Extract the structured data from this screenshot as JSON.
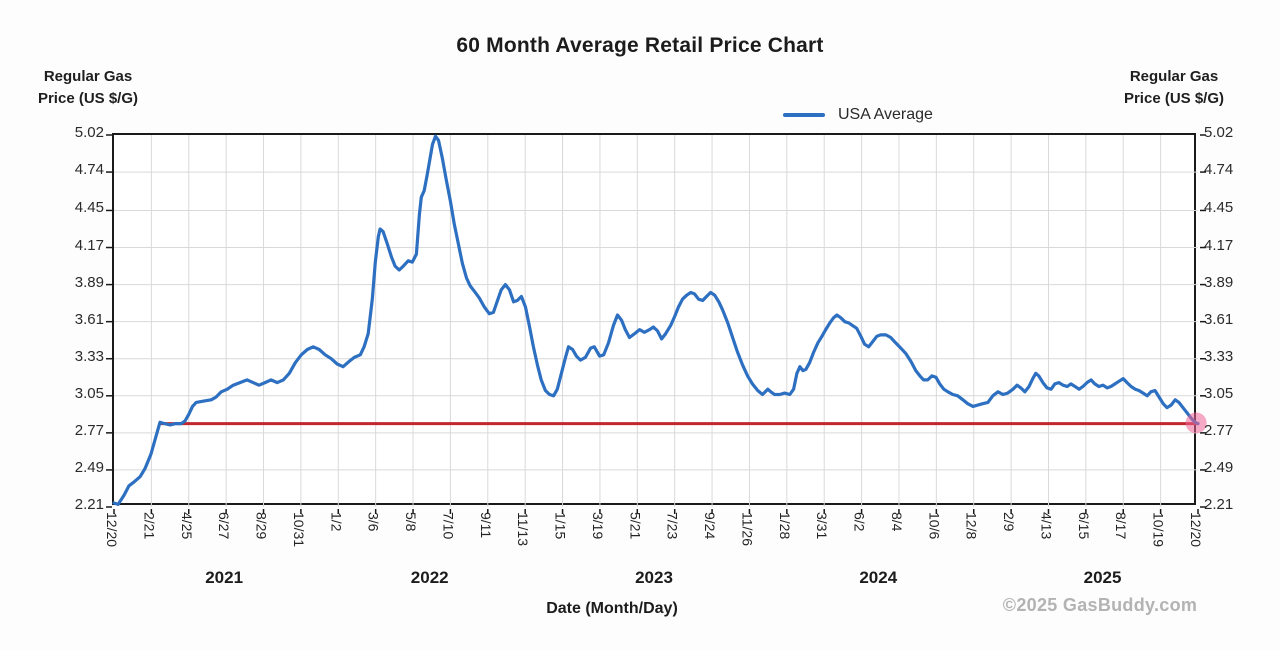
{
  "title": "60 Month Average Retail Price Chart",
  "axis_left_title": {
    "line1": "Regular Gas",
    "line2": "Price (US $/G)"
  },
  "axis_right_title": {
    "line1": "Regular Gas",
    "line2": "Price (US $/G)"
  },
  "legend": {
    "label": "USA Average",
    "swatch_color": "#2d6fc1"
  },
  "x_axis_title": "Date (Month/Day)",
  "watermark": "©2025 GasBuddy.com",
  "colors": {
    "series_blue": "#2d6fc1",
    "reference_red": "#c1272d",
    "end_marker_pink": "#ee6496",
    "end_marker_opacity": 0.55,
    "grid": "#d9d9d9",
    "plot_border": "#1a1a1a",
    "tick_text": "#242424",
    "watermark_gray": "#b3b3b3"
  },
  "chart_data": {
    "type": "line",
    "title": "60 Month Average Retail Price Chart",
    "xlabel": "Date (Month/Day)",
    "ylabel": "Regular Gas Price (US $/G)",
    "grid": true,
    "legend_position": "top-right",
    "ylim": [
      2.21,
      5.02
    ],
    "x_units": [
      0,
      29
    ],
    "y_ticks": [
      "5.02",
      "4.74",
      "4.45",
      "4.17",
      "3.89",
      "3.61",
      "3.33",
      "3.05",
      "2.77",
      "2.49",
      "2.21"
    ],
    "x_ticks": [
      "12/20",
      "2/21",
      "4/25",
      "6/27",
      "8/29",
      "10/31",
      "1/2",
      "3/6",
      "5/8",
      "7/10",
      "9/11",
      "11/13",
      "1/15",
      "3/19",
      "5/21",
      "7/23",
      "9/24",
      "11/26",
      "1/28",
      "3/31",
      "6/2",
      "8/4",
      "10/6",
      "12/8",
      "2/9",
      "4/13",
      "6/15",
      "8/17",
      "10/19",
      "12/20"
    ],
    "years": [
      {
        "label": "2021",
        "center_u": 3.0
      },
      {
        "label": "2022",
        "center_u": 8.5
      },
      {
        "label": "2023",
        "center_u": 14.5
      },
      {
        "label": "2024",
        "center_u": 20.5
      },
      {
        "label": "2025",
        "center_u": 26.5
      }
    ],
    "reference_line": {
      "value": 2.84,
      "start_u": 1.25,
      "end_u": 29
    },
    "end_marker": {
      "u": 28.95,
      "value": 2.845
    },
    "series": [
      {
        "name": "USA Average",
        "points": [
          [
            0,
            2.24
          ],
          [
            0.11,
            2.23
          ],
          [
            0.27,
            2.3
          ],
          [
            0.4,
            2.37
          ],
          [
            0.54,
            2.4
          ],
          [
            0.7,
            2.44
          ],
          [
            0.83,
            2.5
          ],
          [
            0.99,
            2.61
          ],
          [
            1.1,
            2.72
          ],
          [
            1.18,
            2.8
          ],
          [
            1.23,
            2.85
          ],
          [
            1.35,
            2.84
          ],
          [
            1.5,
            2.83
          ],
          [
            1.65,
            2.84
          ],
          [
            1.8,
            2.84
          ],
          [
            1.9,
            2.86
          ],
          [
            2.0,
            2.91
          ],
          [
            2.1,
            2.97
          ],
          [
            2.2,
            3.0
          ],
          [
            2.4,
            3.01
          ],
          [
            2.6,
            3.02
          ],
          [
            2.73,
            3.04
          ],
          [
            2.87,
            3.08
          ],
          [
            3.03,
            3.1
          ],
          [
            3.19,
            3.13
          ],
          [
            3.37,
            3.15
          ],
          [
            3.56,
            3.17
          ],
          [
            3.72,
            3.15
          ],
          [
            3.88,
            3.13
          ],
          [
            4.04,
            3.15
          ],
          [
            4.2,
            3.17
          ],
          [
            4.37,
            3.15
          ],
          [
            4.53,
            3.17
          ],
          [
            4.69,
            3.22
          ],
          [
            4.85,
            3.3
          ],
          [
            5.01,
            3.36
          ],
          [
            5.17,
            3.4
          ],
          [
            5.33,
            3.42
          ],
          [
            5.49,
            3.4
          ],
          [
            5.65,
            3.36
          ],
          [
            5.81,
            3.33
          ],
          [
            5.97,
            3.29
          ],
          [
            6.13,
            3.27
          ],
          [
            6.29,
            3.31
          ],
          [
            6.43,
            3.34
          ],
          [
            6.59,
            3.36
          ],
          [
            6.69,
            3.42
          ],
          [
            6.8,
            3.52
          ],
          [
            6.91,
            3.78
          ],
          [
            6.99,
            4.06
          ],
          [
            7.07,
            4.25
          ],
          [
            7.12,
            4.31
          ],
          [
            7.2,
            4.29
          ],
          [
            7.31,
            4.2
          ],
          [
            7.42,
            4.1
          ],
          [
            7.52,
            4.03
          ],
          [
            7.63,
            4.0
          ],
          [
            7.74,
            4.03
          ],
          [
            7.87,
            4.07
          ],
          [
            7.98,
            4.06
          ],
          [
            8.09,
            4.12
          ],
          [
            8.17,
            4.42
          ],
          [
            8.22,
            4.55
          ],
          [
            8.3,
            4.6
          ],
          [
            8.38,
            4.72
          ],
          [
            8.46,
            4.85
          ],
          [
            8.52,
            4.95
          ],
          [
            8.6,
            5.01
          ],
          [
            8.68,
            4.98
          ],
          [
            8.78,
            4.85
          ],
          [
            8.89,
            4.68
          ],
          [
            9.0,
            4.52
          ],
          [
            9.1,
            4.35
          ],
          [
            9.21,
            4.2
          ],
          [
            9.32,
            4.05
          ],
          [
            9.43,
            3.94
          ],
          [
            9.53,
            3.88
          ],
          [
            9.64,
            3.84
          ],
          [
            9.77,
            3.79
          ],
          [
            9.91,
            3.72
          ],
          [
            10.04,
            3.67
          ],
          [
            10.15,
            3.68
          ],
          [
            10.26,
            3.77
          ],
          [
            10.36,
            3.85
          ],
          [
            10.47,
            3.89
          ],
          [
            10.58,
            3.85
          ],
          [
            10.69,
            3.76
          ],
          [
            10.79,
            3.77
          ],
          [
            10.9,
            3.8
          ],
          [
            11.01,
            3.72
          ],
          [
            11.11,
            3.58
          ],
          [
            11.22,
            3.42
          ],
          [
            11.33,
            3.28
          ],
          [
            11.43,
            3.17
          ],
          [
            11.54,
            3.09
          ],
          [
            11.65,
            3.06
          ],
          [
            11.76,
            3.05
          ],
          [
            11.86,
            3.1
          ],
          [
            11.97,
            3.22
          ],
          [
            12.08,
            3.34
          ],
          [
            12.16,
            3.42
          ],
          [
            12.27,
            3.4
          ],
          [
            12.37,
            3.35
          ],
          [
            12.48,
            3.32
          ],
          [
            12.61,
            3.34
          ],
          [
            12.75,
            3.41
          ],
          [
            12.85,
            3.42
          ],
          [
            12.99,
            3.35
          ],
          [
            13.1,
            3.36
          ],
          [
            13.23,
            3.45
          ],
          [
            13.36,
            3.58
          ],
          [
            13.47,
            3.66
          ],
          [
            13.58,
            3.62
          ],
          [
            13.68,
            3.55
          ],
          [
            13.79,
            3.49
          ],
          [
            13.93,
            3.52
          ],
          [
            14.06,
            3.55
          ],
          [
            14.19,
            3.53
          ],
          [
            14.33,
            3.55
          ],
          [
            14.43,
            3.57
          ],
          [
            14.54,
            3.54
          ],
          [
            14.65,
            3.48
          ],
          [
            14.76,
            3.52
          ],
          [
            14.89,
            3.58
          ],
          [
            15.0,
            3.65
          ],
          [
            15.1,
            3.72
          ],
          [
            15.21,
            3.78
          ],
          [
            15.32,
            3.81
          ],
          [
            15.43,
            3.83
          ],
          [
            15.53,
            3.82
          ],
          [
            15.64,
            3.78
          ],
          [
            15.75,
            3.77
          ],
          [
            15.85,
            3.8
          ],
          [
            15.96,
            3.83
          ],
          [
            16.07,
            3.81
          ],
          [
            16.18,
            3.76
          ],
          [
            16.28,
            3.7
          ],
          [
            16.42,
            3.6
          ],
          [
            16.55,
            3.49
          ],
          [
            16.68,
            3.38
          ],
          [
            16.82,
            3.28
          ],
          [
            16.95,
            3.2
          ],
          [
            17.08,
            3.14
          ],
          [
            17.22,
            3.09
          ],
          [
            17.35,
            3.06
          ],
          [
            17.49,
            3.1
          ],
          [
            17.57,
            3.08
          ],
          [
            17.67,
            3.06
          ],
          [
            17.81,
            3.06
          ],
          [
            17.94,
            3.07
          ],
          [
            18.08,
            3.06
          ],
          [
            18.18,
            3.1
          ],
          [
            18.27,
            3.22
          ],
          [
            18.35,
            3.27
          ],
          [
            18.43,
            3.24
          ],
          [
            18.51,
            3.25
          ],
          [
            18.61,
            3.3
          ],
          [
            18.72,
            3.38
          ],
          [
            18.83,
            3.45
          ],
          [
            18.94,
            3.5
          ],
          [
            19.04,
            3.55
          ],
          [
            19.15,
            3.6
          ],
          [
            19.25,
            3.64
          ],
          [
            19.34,
            3.66
          ],
          [
            19.44,
            3.64
          ],
          [
            19.55,
            3.61
          ],
          [
            19.66,
            3.6
          ],
          [
            19.76,
            3.58
          ],
          [
            19.87,
            3.56
          ],
          [
            19.98,
            3.5
          ],
          [
            20.08,
            3.44
          ],
          [
            20.19,
            3.42
          ],
          [
            20.3,
            3.46
          ],
          [
            20.41,
            3.5
          ],
          [
            20.51,
            3.51
          ],
          [
            20.65,
            3.51
          ],
          [
            20.78,
            3.49
          ],
          [
            20.91,
            3.45
          ],
          [
            21.05,
            3.41
          ],
          [
            21.18,
            3.37
          ],
          [
            21.32,
            3.31
          ],
          [
            21.45,
            3.24
          ],
          [
            21.56,
            3.2
          ],
          [
            21.66,
            3.17
          ],
          [
            21.77,
            3.17
          ],
          [
            21.88,
            3.2
          ],
          [
            21.99,
            3.19
          ],
          [
            22.09,
            3.14
          ],
          [
            22.2,
            3.1
          ],
          [
            22.31,
            3.08
          ],
          [
            22.44,
            3.06
          ],
          [
            22.57,
            3.05
          ],
          [
            22.71,
            3.02
          ],
          [
            22.84,
            2.99
          ],
          [
            22.98,
            2.97
          ],
          [
            23.11,
            2.98
          ],
          [
            23.24,
            2.99
          ],
          [
            23.38,
            3.0
          ],
          [
            23.51,
            3.05
          ],
          [
            23.65,
            3.08
          ],
          [
            23.78,
            3.06
          ],
          [
            23.91,
            3.07
          ],
          [
            24.05,
            3.1
          ],
          [
            24.16,
            3.13
          ],
          [
            24.26,
            3.11
          ],
          [
            24.37,
            3.08
          ],
          [
            24.48,
            3.12
          ],
          [
            24.58,
            3.18
          ],
          [
            24.66,
            3.22
          ],
          [
            24.74,
            3.2
          ],
          [
            24.85,
            3.15
          ],
          [
            24.96,
            3.11
          ],
          [
            25.07,
            3.1
          ],
          [
            25.17,
            3.14
          ],
          [
            25.28,
            3.15
          ],
          [
            25.39,
            3.13
          ],
          [
            25.5,
            3.12
          ],
          [
            25.6,
            3.14
          ],
          [
            25.71,
            3.12
          ],
          [
            25.82,
            3.1
          ],
          [
            25.92,
            3.12
          ],
          [
            26.03,
            3.15
          ],
          [
            26.14,
            3.17
          ],
          [
            26.24,
            3.14
          ],
          [
            26.35,
            3.12
          ],
          [
            26.46,
            3.13
          ],
          [
            26.57,
            3.11
          ],
          [
            26.67,
            3.12
          ],
          [
            26.78,
            3.14
          ],
          [
            26.89,
            3.16
          ],
          [
            27.0,
            3.18
          ],
          [
            27.1,
            3.15
          ],
          [
            27.21,
            3.12
          ],
          [
            27.32,
            3.1
          ],
          [
            27.42,
            3.09
          ],
          [
            27.53,
            3.07
          ],
          [
            27.64,
            3.05
          ],
          [
            27.74,
            3.08
          ],
          [
            27.85,
            3.09
          ],
          [
            27.96,
            3.04
          ],
          [
            28.07,
            2.99
          ],
          [
            28.17,
            2.96
          ],
          [
            28.28,
            2.98
          ],
          [
            28.39,
            3.02
          ],
          [
            28.49,
            3.0
          ],
          [
            28.6,
            2.96
          ],
          [
            28.71,
            2.92
          ],
          [
            28.82,
            2.88
          ],
          [
            28.92,
            2.85
          ],
          [
            29.0,
            2.84
          ]
        ]
      }
    ]
  }
}
